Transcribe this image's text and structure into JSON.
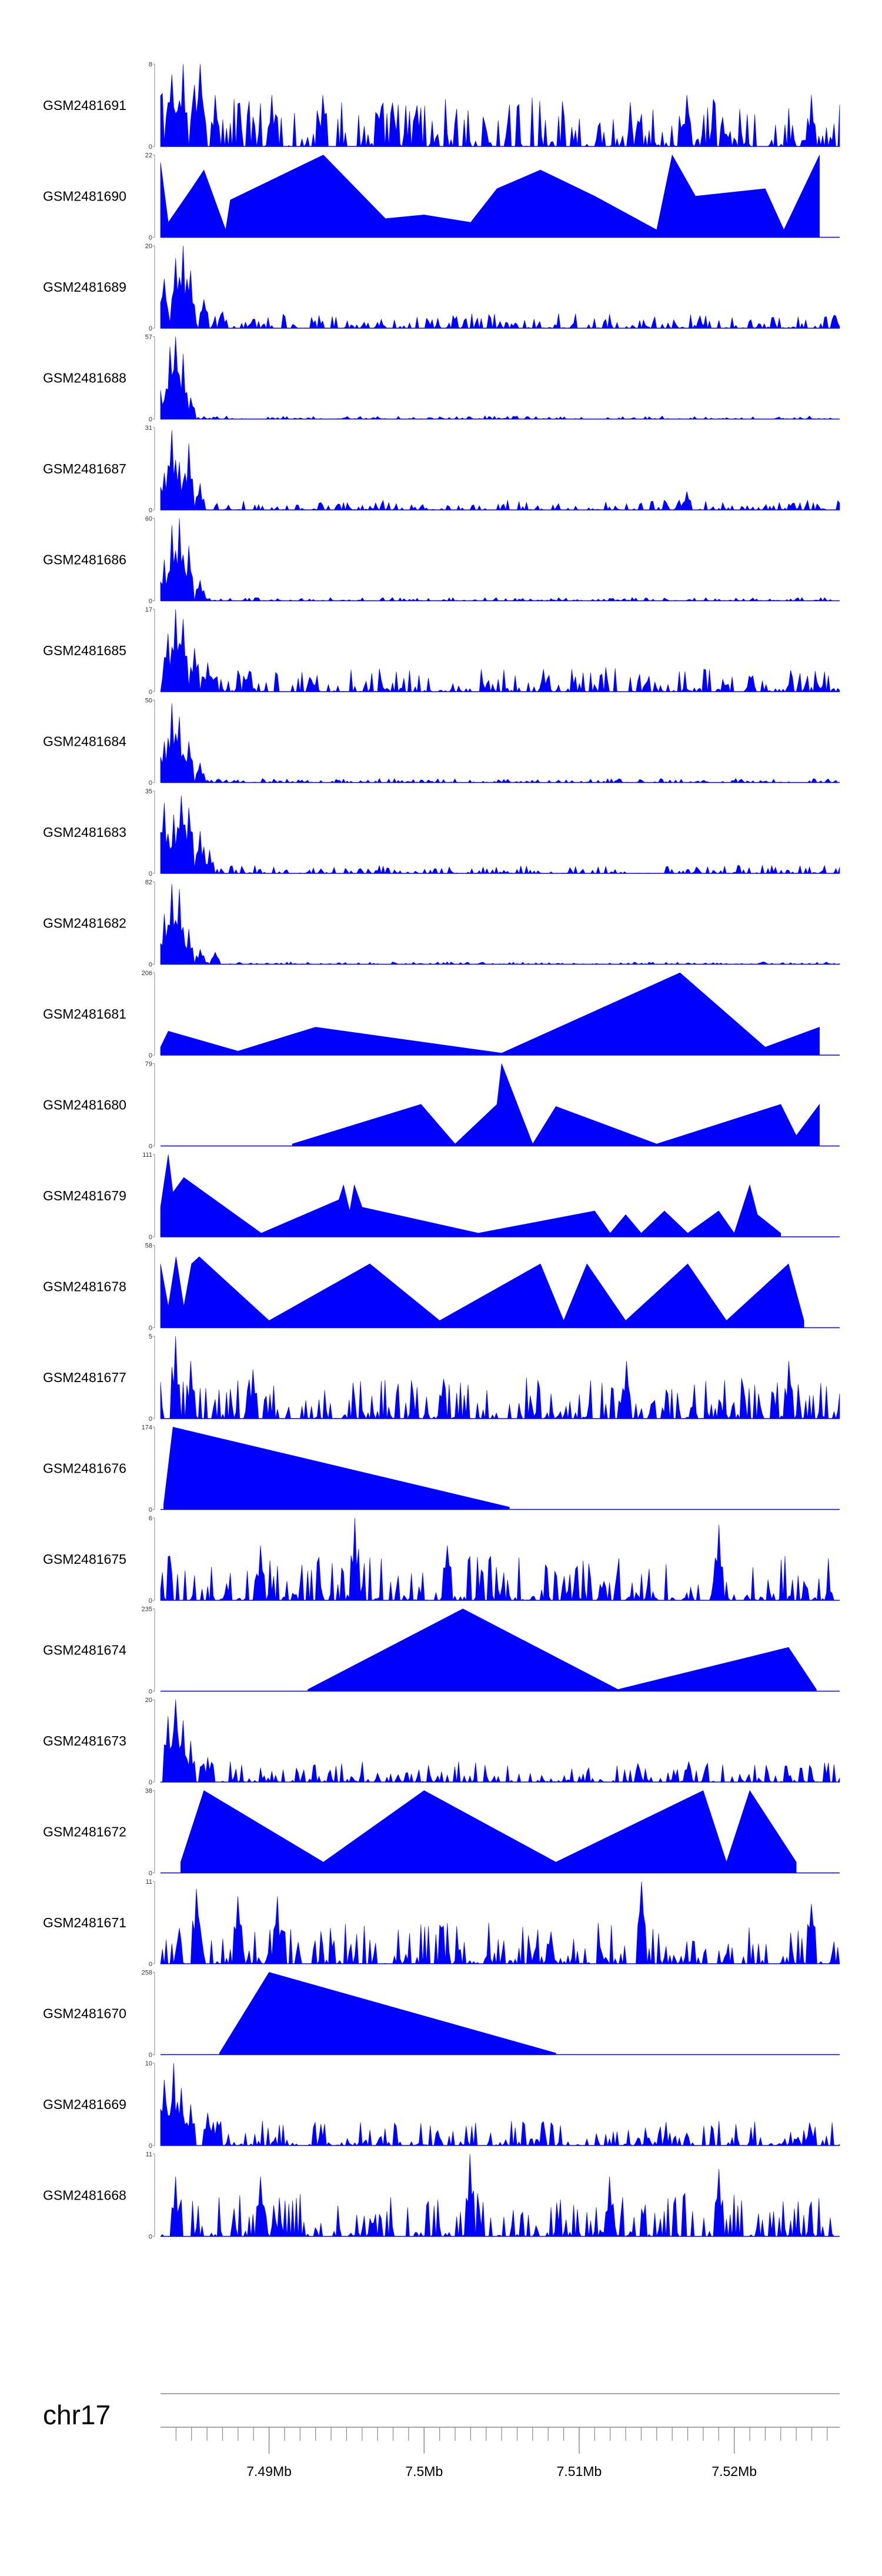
{
  "chart_data": {
    "type": "area",
    "chromosome": "chr17",
    "x_ticks": [
      "7.49Mb",
      "7.5Mb",
      "7.51Mb",
      "7.52Mb"
    ],
    "color": "#0000ff",
    "tracks": [
      {
        "name": "GSM2481691",
        "ymax": 8,
        "pattern": "dense",
        "peaks": [
          [
            7.4829,
            8
          ],
          [
            7.4837,
            7
          ],
          [
            7.4845,
            8
          ],
          [
            7.4852,
            6
          ],
          [
            7.4856,
            8
          ],
          [
            7.4865,
            5
          ],
          [
            7.4902,
            5
          ],
          [
            7.4935,
            5
          ],
          [
            7.4995,
            4
          ],
          [
            7.517,
            5
          ],
          [
            7.525,
            5
          ]
        ],
        "dense_height": 0.6
      },
      {
        "name": "GSM2481690",
        "ymax": 22,
        "pattern": "peaks",
        "peaks": [
          [
            7.483,
            20
          ],
          [
            7.4835,
            4
          ],
          [
            7.485,
            13
          ],
          [
            7.4858,
            18
          ],
          [
            7.4872,
            2
          ],
          [
            7.4875,
            10
          ],
          [
            7.4935,
            22
          ],
          [
            7.4975,
            5
          ],
          [
            7.5,
            6
          ],
          [
            7.503,
            4
          ],
          [
            7.5047,
            13
          ],
          [
            7.5075,
            18
          ],
          [
            7.511,
            11
          ],
          [
            7.515,
            2
          ],
          [
            7.516,
            22
          ],
          [
            7.5175,
            11
          ],
          [
            7.522,
            13
          ],
          [
            7.5232,
            2
          ],
          [
            7.5255,
            22
          ]
        ]
      },
      {
        "name": "GSM2481689",
        "ymax": 20,
        "pattern": "early",
        "peaks": [
          [
            7.4833,
            12
          ],
          [
            7.484,
            17
          ],
          [
            7.4845,
            20
          ],
          [
            7.485,
            14
          ],
          [
            7.4858,
            7
          ],
          [
            7.487,
            4
          ]
        ],
        "dense_height": 0.18
      },
      {
        "name": "GSM2481688",
        "ymax": 57,
        "pattern": "early",
        "peaks": [
          [
            7.483,
            20
          ],
          [
            7.4836,
            50
          ],
          [
            7.484,
            57
          ],
          [
            7.4844,
            45
          ],
          [
            7.485,
            15
          ]
        ],
        "dense_height": 0.04
      },
      {
        "name": "GSM2481687",
        "ymax": 31,
        "pattern": "early",
        "peaks": [
          [
            7.4832,
            14
          ],
          [
            7.4837,
            30
          ],
          [
            7.4842,
            18
          ],
          [
            7.4848,
            25
          ],
          [
            7.4855,
            10
          ],
          [
            7.517,
            7
          ]
        ],
        "dense_height": 0.12
      },
      {
        "name": "GSM2481686",
        "ymax": 60,
        "pattern": "early",
        "peaks": [
          [
            7.4832,
            30
          ],
          [
            7.4837,
            55
          ],
          [
            7.4842,
            60
          ],
          [
            7.4848,
            40
          ],
          [
            7.4856,
            15
          ]
        ],
        "dense_height": 0.04
      },
      {
        "name": "GSM2481685",
        "ymax": 17,
        "pattern": "early",
        "peaks": [
          [
            7.4835,
            12
          ],
          [
            7.484,
            17
          ],
          [
            7.4845,
            15
          ],
          [
            7.4852,
            9
          ],
          [
            7.486,
            6
          ]
        ],
        "dense_height": 0.3
      },
      {
        "name": "GSM2481684",
        "ymax": 50,
        "pattern": "early",
        "peaks": [
          [
            7.4832,
            25
          ],
          [
            7.4837,
            48
          ],
          [
            7.4842,
            40
          ],
          [
            7.4848,
            25
          ],
          [
            7.4856,
            12
          ]
        ],
        "dense_height": 0.05
      },
      {
        "name": "GSM2481683",
        "ymax": 35,
        "pattern": "early",
        "peaks": [
          [
            7.4833,
            30
          ],
          [
            7.4838,
            25
          ],
          [
            7.4843,
            33
          ],
          [
            7.4848,
            28
          ],
          [
            7.4855,
            18
          ],
          [
            7.4862,
            10
          ]
        ],
        "dense_height": 0.1
      },
      {
        "name": "GSM2481682",
        "ymax": 82,
        "pattern": "early",
        "peaks": [
          [
            7.4832,
            50
          ],
          [
            7.4837,
            80
          ],
          [
            7.4842,
            75
          ],
          [
            7.4848,
            35
          ],
          [
            7.4856,
            15
          ],
          [
            7.4865,
            12
          ]
        ],
        "dense_height": 0.03
      },
      {
        "name": "GSM2481681",
        "ymax": 206,
        "pattern": "peaks",
        "peaks": [
          [
            7.483,
            20
          ],
          [
            7.4835,
            60
          ],
          [
            7.488,
            10
          ],
          [
            7.493,
            70
          ],
          [
            7.505,
            5
          ],
          [
            7.5165,
            206
          ],
          [
            7.522,
            20
          ],
          [
            7.5255,
            70
          ]
        ]
      },
      {
        "name": "GSM2481680",
        "ymax": 79,
        "pattern": "peaks",
        "peaks": [
          [
            7.4915,
            2
          ],
          [
            7.4998,
            40
          ],
          [
            7.502,
            2
          ],
          [
            7.5047,
            40
          ],
          [
            7.505,
            79
          ],
          [
            7.507,
            2
          ],
          [
            7.5085,
            38
          ],
          [
            7.515,
            2
          ],
          [
            7.523,
            40
          ],
          [
            7.524,
            10
          ],
          [
            7.5255,
            40
          ]
        ]
      },
      {
        "name": "GSM2481679",
        "ymax": 111,
        "pattern": "peaks",
        "peaks": [
          [
            7.483,
            40
          ],
          [
            7.4835,
            111
          ],
          [
            7.4838,
            60
          ],
          [
            7.4845,
            80
          ],
          [
            7.4895,
            5
          ],
          [
            7.4945,
            50
          ],
          [
            7.4948,
            70
          ],
          [
            7.4952,
            35
          ],
          [
            7.4955,
            70
          ],
          [
            7.496,
            40
          ],
          [
            7.5035,
            5
          ],
          [
            7.511,
            35
          ],
          [
            7.512,
            5
          ],
          [
            7.513,
            30
          ],
          [
            7.514,
            5
          ],
          [
            7.5155,
            35
          ],
          [
            7.517,
            5
          ],
          [
            7.519,
            35
          ],
          [
            7.52,
            5
          ],
          [
            7.521,
            70
          ],
          [
            7.5215,
            30
          ],
          [
            7.523,
            5
          ]
        ]
      },
      {
        "name": "GSM2481678",
        "ymax": 58,
        "pattern": "peaks",
        "peaks": [
          [
            7.483,
            45
          ],
          [
            7.4835,
            15
          ],
          [
            7.484,
            50
          ],
          [
            7.4845,
            15
          ],
          [
            7.485,
            45
          ],
          [
            7.4855,
            50
          ],
          [
            7.49,
            5
          ],
          [
            7.4965,
            45
          ],
          [
            7.501,
            5
          ],
          [
            7.5075,
            45
          ],
          [
            7.509,
            5
          ],
          [
            7.5105,
            45
          ],
          [
            7.513,
            5
          ],
          [
            7.517,
            45
          ],
          [
            7.5195,
            5
          ],
          [
            7.5235,
            45
          ],
          [
            7.5245,
            5
          ]
        ]
      },
      {
        "name": "GSM2481677",
        "ymax": 5,
        "pattern": "dense",
        "peaks": [
          [
            7.484,
            5
          ],
          [
            7.485,
            3.5
          ],
          [
            7.489,
            3
          ],
          [
            7.513,
            3.5
          ],
          [
            7.5235,
            3.5
          ]
        ],
        "dense_height": 0.5
      },
      {
        "name": "GSM2481676",
        "ymax": 174,
        "pattern": "peaks",
        "peaks": [
          [
            7.4832,
            10
          ],
          [
            7.4838,
            174
          ],
          [
            7.5055,
            5
          ]
        ]
      },
      {
        "name": "GSM2481675",
        "ymax": 6,
        "pattern": "dense",
        "peaks": [
          [
            7.4955,
            6
          ],
          [
            7.519,
            5.5
          ],
          [
            7.4895,
            4
          ],
          [
            7.5015,
            4
          ]
        ],
        "dense_height": 0.55
      },
      {
        "name": "GSM2481674",
        "ymax": 235,
        "pattern": "peaks",
        "peaks": [
          [
            7.4925,
            5
          ],
          [
            7.5025,
            235
          ],
          [
            7.5125,
            5
          ],
          [
            7.5235,
            125
          ],
          [
            7.5253,
            5
          ]
        ]
      },
      {
        "name": "GSM2481673",
        "ymax": 20,
        "pattern": "early",
        "peaks": [
          [
            7.4835,
            16
          ],
          [
            7.484,
            20
          ],
          [
            7.4845,
            15
          ],
          [
            7.485,
            10
          ],
          [
            7.486,
            6
          ]
        ],
        "dense_height": 0.25
      },
      {
        "name": "GSM2481672",
        "ymax": 38,
        "pattern": "peaks",
        "peaks": [
          [
            7.4843,
            5
          ],
          [
            7.4858,
            38
          ],
          [
            7.4935,
            5
          ],
          [
            7.5,
            38
          ],
          [
            7.5085,
            5
          ],
          [
            7.518,
            38
          ],
          [
            7.5195,
            5
          ],
          [
            7.521,
            38
          ],
          [
            7.524,
            5
          ]
        ]
      },
      {
        "name": "GSM2481671",
        "ymax": 11,
        "pattern": "dense",
        "peaks": [
          [
            7.4853,
            10
          ],
          [
            7.488,
            9
          ],
          [
            7.4905,
            9
          ],
          [
            7.514,
            11
          ],
          [
            7.525,
            8
          ]
        ],
        "dense_height": 0.5
      },
      {
        "name": "GSM2481670",
        "ymax": 258,
        "pattern": "peaks",
        "peaks": [
          [
            7.4868,
            5
          ],
          [
            7.49,
            258
          ],
          [
            7.5085,
            5
          ]
        ]
      },
      {
        "name": "GSM2481669",
        "ymax": 10,
        "pattern": "early",
        "peaks": [
          [
            7.4833,
            8
          ],
          [
            7.4838,
            10
          ],
          [
            7.4843,
            7
          ],
          [
            7.485,
            5
          ],
          [
            7.486,
            4
          ]
        ],
        "dense_height": 0.3
      },
      {
        "name": "GSM2481668",
        "ymax": 11,
        "pattern": "dense",
        "peaks": [
          [
            7.484,
            8
          ],
          [
            7.4895,
            8
          ],
          [
            7.503,
            11
          ],
          [
            7.519,
            9
          ],
          [
            7.512,
            8
          ]
        ],
        "dense_height": 0.55
      }
    ],
    "x_range": [
      7.483,
      7.5268
    ]
  }
}
